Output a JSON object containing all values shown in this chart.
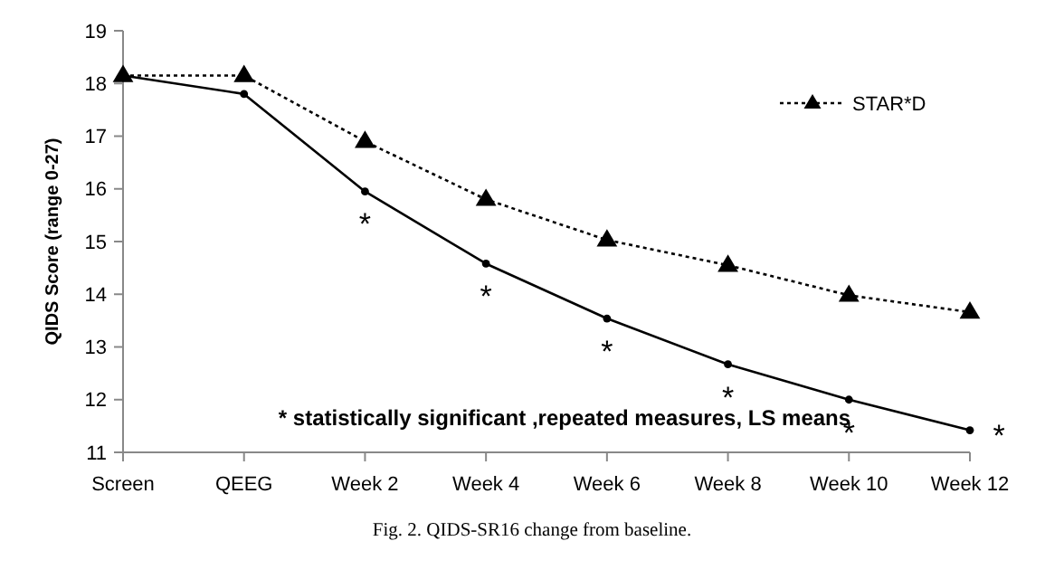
{
  "chart_data": {
    "type": "line",
    "ylabel": "QIDS Score (range 0-27)",
    "categories": [
      "Screen",
      "QEEG",
      "Week 2",
      "Week 4",
      "Week 6",
      "Week 8",
      "Week 10",
      "Week 12"
    ],
    "series": [
      {
        "name": "STAR*D",
        "color": "#000000",
        "marker": "triangle",
        "line_style": "dotted",
        "values": [
          18.15,
          18.15,
          16.9,
          15.8,
          15.03,
          14.55,
          13.98,
          13.66
        ]
      },
      {
        "color": "#000000",
        "marker": "circle",
        "line_style": "solid",
        "values": [
          18.15,
          17.8,
          15.95,
          14.58,
          13.54,
          12.67,
          12.0,
          11.42
        ]
      }
    ],
    "ylim": [
      11,
      19
    ],
    "yticks": [
      11,
      12,
      13,
      14,
      15,
      16,
      17,
      18,
      19
    ],
    "grid": false,
    "legend": "top right",
    "annotations": [
      {
        "text": "*",
        "x": "Week 2",
        "y": 15.95
      },
      {
        "text": "*",
        "x": "Week 4",
        "y": 14.58
      },
      {
        "text": "*",
        "x": "Week 6",
        "y": 13.54
      },
      {
        "text": "*",
        "x": "Week 8",
        "y": 12.67
      },
      {
        "text": "*",
        "x": "Week 10",
        "y": 12.0
      },
      {
        "text": "*",
        "x": "Week 12",
        "y": 11.42
      },
      "* statistically significant ,repeated measures, LS means",
      "Fig. 2.  QIDS-SR16 change from baseline."
    ]
  }
}
